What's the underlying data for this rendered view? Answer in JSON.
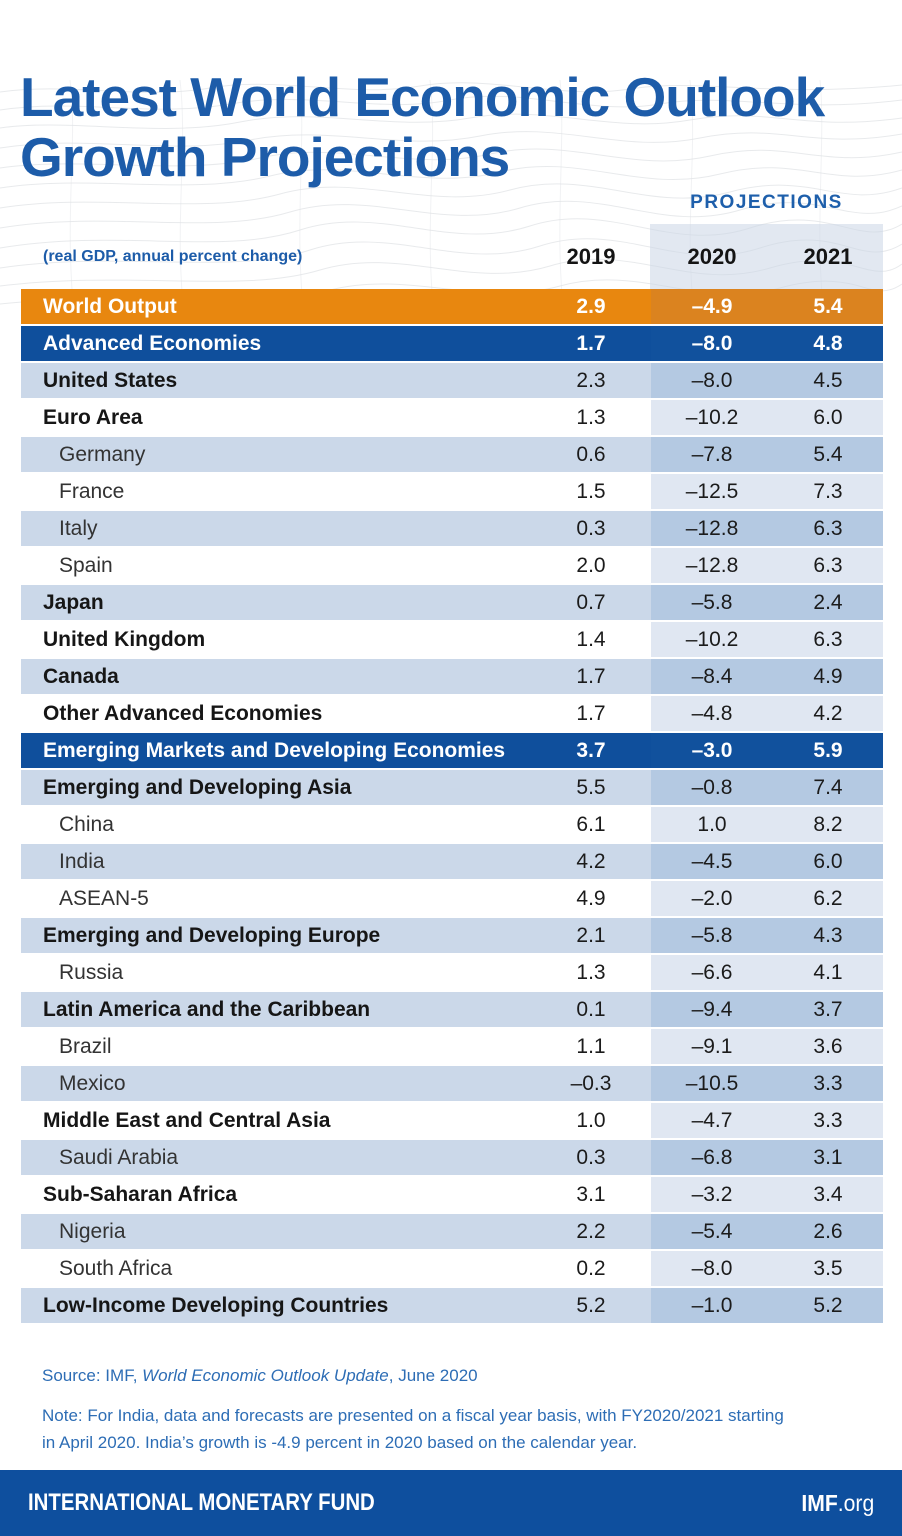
{
  "title": {
    "line1": "Latest World Economic Outlook",
    "line2": "Growth Projections"
  },
  "table": {
    "projections_label": "PROJECTIONS",
    "unit_label": "(real GDP, annual percent change)",
    "columns": [
      "2019",
      "2020",
      "2021"
    ]
  },
  "chart_data": {
    "type": "table",
    "title": "Latest World Economic Outlook Growth Projections",
    "unit": "real GDP, annual percent change",
    "columns": [
      "2019",
      "2020",
      "2021"
    ],
    "rows": [
      {
        "label": "World Output",
        "style": "orange",
        "indent": false,
        "values": [
          2.9,
          -4.9,
          5.4
        ]
      },
      {
        "label": "Advanced Economies",
        "style": "navy",
        "indent": false,
        "values": [
          1.7,
          -8.0,
          4.8
        ]
      },
      {
        "label": "United States",
        "style": "light",
        "indent": false,
        "values": [
          2.3,
          -8.0,
          4.5
        ]
      },
      {
        "label": "Euro Area",
        "style": "white",
        "indent": false,
        "values": [
          1.3,
          -10.2,
          6.0
        ]
      },
      {
        "label": "Germany",
        "style": "light",
        "indent": true,
        "values": [
          0.6,
          -7.8,
          5.4
        ]
      },
      {
        "label": "France",
        "style": "white",
        "indent": true,
        "values": [
          1.5,
          -12.5,
          7.3
        ]
      },
      {
        "label": "Italy",
        "style": "light",
        "indent": true,
        "values": [
          0.3,
          -12.8,
          6.3
        ]
      },
      {
        "label": "Spain",
        "style": "white",
        "indent": true,
        "values": [
          2.0,
          -12.8,
          6.3
        ]
      },
      {
        "label": "Japan",
        "style": "light",
        "indent": false,
        "values": [
          0.7,
          -5.8,
          2.4
        ]
      },
      {
        "label": "United Kingdom",
        "style": "white",
        "indent": false,
        "values": [
          1.4,
          -10.2,
          6.3
        ]
      },
      {
        "label": "Canada",
        "style": "light",
        "indent": false,
        "values": [
          1.7,
          -8.4,
          4.9
        ]
      },
      {
        "label": "Other Advanced Economies",
        "style": "white",
        "indent": false,
        "values": [
          1.7,
          -4.8,
          4.2
        ]
      },
      {
        "label": "Emerging Markets and Developing Economies",
        "style": "navy",
        "indent": false,
        "values": [
          3.7,
          -3.0,
          5.9
        ]
      },
      {
        "label": "Emerging and Developing Asia",
        "style": "light",
        "indent": false,
        "values": [
          5.5,
          -0.8,
          7.4
        ]
      },
      {
        "label": "China",
        "style": "white",
        "indent": true,
        "values": [
          6.1,
          1.0,
          8.2
        ]
      },
      {
        "label": "India",
        "style": "light",
        "indent": true,
        "values": [
          4.2,
          -4.5,
          6.0
        ]
      },
      {
        "label": "ASEAN-5",
        "style": "white",
        "indent": true,
        "values": [
          4.9,
          -2.0,
          6.2
        ]
      },
      {
        "label": "Emerging and Developing Europe",
        "style": "light",
        "indent": false,
        "values": [
          2.1,
          -5.8,
          4.3
        ]
      },
      {
        "label": "Russia",
        "style": "white",
        "indent": true,
        "values": [
          1.3,
          -6.6,
          4.1
        ]
      },
      {
        "label": "Latin America and the Caribbean",
        "style": "light",
        "indent": false,
        "values": [
          0.1,
          -9.4,
          3.7
        ]
      },
      {
        "label": "Brazil",
        "style": "white",
        "indent": true,
        "values": [
          1.1,
          -9.1,
          3.6
        ]
      },
      {
        "label": "Mexico",
        "style": "light",
        "indent": true,
        "values": [
          -0.3,
          -10.5,
          3.3
        ]
      },
      {
        "label": "Middle East and Central Asia",
        "style": "white",
        "indent": false,
        "values": [
          1.0,
          -4.7,
          3.3
        ]
      },
      {
        "label": "Saudi Arabia",
        "style": "light",
        "indent": true,
        "values": [
          0.3,
          -6.8,
          3.1
        ]
      },
      {
        "label": "Sub-Saharan Africa",
        "style": "white",
        "indent": false,
        "values": [
          3.1,
          -3.2,
          3.4
        ]
      },
      {
        "label": "Nigeria",
        "style": "light",
        "indent": true,
        "values": [
          2.2,
          -5.4,
          2.6
        ]
      },
      {
        "label": "South Africa",
        "style": "white",
        "indent": true,
        "values": [
          0.2,
          -8.0,
          3.5
        ]
      },
      {
        "label": "Low-Income Developing Countries",
        "style": "light",
        "indent": false,
        "values": [
          5.2,
          -1.0,
          5.2
        ]
      }
    ]
  },
  "source": {
    "prefix": "Source: IMF, ",
    "italic": "World Economic Outlook Update",
    "suffix": ", June 2020"
  },
  "note": {
    "line1": "Note: For India, data and forecasts are presented on a fiscal year basis, with FY2020/2021 starting",
    "line2": "in April 2020. India’s growth is -4.9 percent in 2020 based on the calendar year."
  },
  "footer": {
    "left": "INTERNATIONAL MONETARY FUND",
    "brand": "IMF",
    "brand_suffix": ".org"
  },
  "colors": {
    "title_blue": "#1d5ca9",
    "world_orange": "#e8870f",
    "group_navy": "#0f4f9c",
    "row_light_blue": "#cbd8e9",
    "projection_band_light": "#b4c9e2",
    "projection_band_on_white": "#e0e7f2",
    "source_text_blue": "#2d6db5",
    "footer_bar_blue": "#0e4f9e"
  }
}
